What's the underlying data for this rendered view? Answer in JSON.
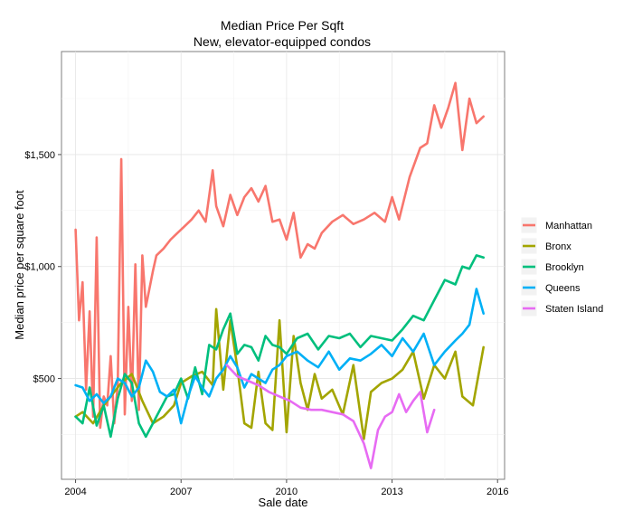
{
  "chart_data": {
    "type": "line",
    "title": "Median Price Per Sqft",
    "subtitle": "New, elevator-equipped condos",
    "xlabel": "Sale date",
    "ylabel": "Median price per square foot",
    "xlim": [
      2003.6,
      2016.2
    ],
    "ylim": [
      50,
      1960
    ],
    "x_ticks": [
      2004,
      2007,
      2010,
      2013,
      2016
    ],
    "x_tick_labels": [
      "2004",
      "2007",
      "2010",
      "2013",
      "2016"
    ],
    "y_ticks": [
      500,
      1000,
      1500
    ],
    "y_tick_labels": [
      "$500",
      "$1,000",
      "$1,500"
    ],
    "grid": true,
    "legend_position": "right",
    "series": [
      {
        "name": "Manhattan",
        "color": "#F8766D",
        "x": [
          2004.0,
          2004.1,
          2004.2,
          2004.3,
          2004.4,
          2004.5,
          2004.6,
          2004.7,
          2004.8,
          2004.9,
          2005.0,
          2005.1,
          2005.2,
          2005.3,
          2005.4,
          2005.5,
          2005.6,
          2005.7,
          2005.8,
          2005.9,
          2006.0,
          2006.1,
          2006.2,
          2006.3,
          2006.5,
          2006.7,
          2006.9,
          2007.1,
          2007.3,
          2007.5,
          2007.7,
          2007.9,
          2008.0,
          2008.2,
          2008.4,
          2008.6,
          2008.8,
          2009.0,
          2009.2,
          2009.4,
          2009.6,
          2009.8,
          2010.0,
          2010.2,
          2010.4,
          2010.6,
          2010.8,
          2011.0,
          2011.3,
          2011.6,
          2011.9,
          2012.2,
          2012.5,
          2012.8,
          2013.0,
          2013.2,
          2013.5,
          2013.8,
          2014.0,
          2014.2,
          2014.4,
          2014.6,
          2014.8,
          2015.0,
          2015.2,
          2015.4,
          2015.6
        ],
        "values": [
          1165,
          760,
          930,
          450,
          800,
          330,
          1130,
          280,
          420,
          380,
          600,
          300,
          470,
          1480,
          340,
          820,
          400,
          1010,
          360,
          1050,
          820,
          900,
          980,
          1050,
          1080,
          1120,
          1150,
          1180,
          1210,
          1250,
          1200,
          1430,
          1270,
          1180,
          1320,
          1230,
          1310,
          1350,
          1290,
          1360,
          1200,
          1210,
          1120,
          1240,
          1040,
          1100,
          1080,
          1150,
          1200,
          1230,
          1190,
          1210,
          1240,
          1200,
          1310,
          1210,
          1400,
          1530,
          1550,
          1720,
          1620,
          1710,
          1820,
          1520,
          1750,
          1640,
          1670
        ]
      },
      {
        "name": "Bronx",
        "color": "#A3A500",
        "x": [
          2004.0,
          2004.2,
          2004.5,
          2004.8,
          2005.0,
          2005.3,
          2005.6,
          2005.9,
          2006.2,
          2006.5,
          2006.8,
          2007.0,
          2007.3,
          2007.6,
          2007.9,
          2008.0,
          2008.2,
          2008.4,
          2008.6,
          2008.8,
          2009.0,
          2009.2,
          2009.4,
          2009.6,
          2009.8,
          2010.0,
          2010.2,
          2010.4,
          2010.6,
          2010.8,
          2011.0,
          2011.3,
          2011.6,
          2011.9,
          2012.2,
          2012.4,
          2012.7,
          2013.0,
          2013.3,
          2013.6,
          2013.9,
          2014.2,
          2014.5,
          2014.8,
          2015.0,
          2015.3,
          2015.6
        ],
        "values": [
          330,
          350,
          300,
          380,
          420,
          480,
          520,
          400,
          300,
          330,
          380,
          480,
          510,
          530,
          470,
          810,
          450,
          760,
          550,
          300,
          280,
          530,
          300,
          270,
          760,
          260,
          690,
          480,
          360,
          520,
          410,
          450,
          340,
          560,
          230,
          440,
          480,
          500,
          540,
          620,
          410,
          560,
          500,
          620,
          420,
          380,
          640
        ]
      },
      {
        "name": "Brooklyn",
        "color": "#00BF7D",
        "x": [
          2004.0,
          2004.2,
          2004.4,
          2004.6,
          2004.8,
          2005.0,
          2005.2,
          2005.4,
          2005.6,
          2005.8,
          2006.0,
          2006.2,
          2006.4,
          2006.6,
          2006.8,
          2007.0,
          2007.2,
          2007.4,
          2007.6,
          2007.8,
          2008.0,
          2008.2,
          2008.4,
          2008.6,
          2008.8,
          2009.0,
          2009.2,
          2009.4,
          2009.6,
          2009.8,
          2010.0,
          2010.3,
          2010.6,
          2010.9,
          2011.2,
          2011.5,
          2011.8,
          2012.1,
          2012.4,
          2012.7,
          2013.0,
          2013.3,
          2013.6,
          2013.9,
          2014.2,
          2014.5,
          2014.8,
          2015.0,
          2015.2,
          2015.4,
          2015.6
        ],
        "values": [
          330,
          300,
          460,
          290,
          380,
          240,
          410,
          520,
          480,
          300,
          240,
          300,
          360,
          420,
          430,
          500,
          410,
          550,
          430,
          650,
          630,
          720,
          790,
          610,
          650,
          640,
          580,
          690,
          650,
          640,
          610,
          680,
          700,
          630,
          690,
          680,
          700,
          640,
          690,
          680,
          670,
          720,
          780,
          760,
          850,
          940,
          920,
          1000,
          990,
          1050,
          1040
        ]
      },
      {
        "name": "Queens",
        "color": "#00B0F6",
        "x": [
          2004.0,
          2004.2,
          2004.4,
          2004.6,
          2004.8,
          2005.0,
          2005.2,
          2005.4,
          2005.6,
          2005.8,
          2006.0,
          2006.2,
          2006.4,
          2006.6,
          2006.8,
          2007.0,
          2007.2,
          2007.4,
          2007.6,
          2007.8,
          2008.0,
          2008.2,
          2008.4,
          2008.6,
          2008.8,
          2009.0,
          2009.2,
          2009.4,
          2009.6,
          2009.8,
          2010.0,
          2010.3,
          2010.6,
          2010.9,
          2011.2,
          2011.5,
          2011.8,
          2012.1,
          2012.4,
          2012.7,
          2013.0,
          2013.3,
          2013.6,
          2013.9,
          2014.2,
          2014.5,
          2014.8,
          2015.0,
          2015.2,
          2015.4,
          2015.6
        ],
        "values": [
          470,
          460,
          400,
          430,
          390,
          420,
          500,
          480,
          420,
          460,
          580,
          530,
          440,
          420,
          450,
          300,
          420,
          510,
          460,
          420,
          500,
          540,
          600,
          550,
          460,
          520,
          500,
          480,
          540,
          560,
          600,
          620,
          580,
          550,
          620,
          540,
          590,
          580,
          610,
          650,
          600,
          680,
          620,
          700,
          560,
          620,
          670,
          700,
          740,
          900,
          790
        ]
      },
      {
        "name": "Staten Island",
        "color": "#E76BF3",
        "x": [
          2008.3,
          2008.6,
          2008.9,
          2009.2,
          2009.5,
          2009.8,
          2010.1,
          2010.4,
          2010.7,
          2011.0,
          2011.3,
          2011.6,
          2011.9,
          2012.2,
          2012.4,
          2012.6,
          2012.8,
          2013.0,
          2013.2,
          2013.4,
          2013.6,
          2013.8,
          2014.0,
          2014.2
        ],
        "values": [
          560,
          510,
          490,
          470,
          440,
          420,
          400,
          370,
          360,
          360,
          350,
          340,
          310,
          210,
          100,
          270,
          330,
          350,
          430,
          350,
          400,
          440,
          260,
          360
        ]
      }
    ]
  }
}
